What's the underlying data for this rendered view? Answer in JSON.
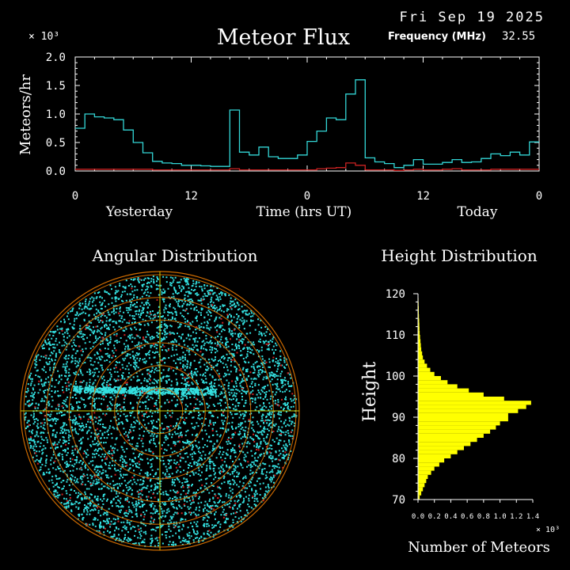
{
  "header": {
    "date": "Fri Sep 19 2025",
    "title": "Meteor Flux",
    "frequency_label": "Frequency (MHz)",
    "frequency_value": "32.55"
  },
  "colors": {
    "background": "#000000",
    "axes": "#ffffff",
    "flux_line": "#33d6d6",
    "flux_red": "#cc2222",
    "scatter_points": "#33e0e0",
    "scatter_red": "#cc2222",
    "rings": "#cc6a00",
    "crosshair": "#c8c800",
    "histogram": "#ffff00"
  },
  "chart_data": [
    {
      "type": "line",
      "title": "Meteor Flux",
      "ylabel": "Meteors/hr",
      "y_multiplier": "× 10³",
      "xlabel": "Time (hrs UT)",
      "day_labels": [
        "Yesterday",
        "Today"
      ],
      "x_tick_labels": [
        "0",
        "12",
        "0",
        "12",
        "0"
      ],
      "y_tick_labels": [
        "0.0",
        "0.5",
        "1.0",
        "1.5",
        "2.0"
      ],
      "x_range": [
        0,
        48
      ],
      "ylim": [
        0,
        2.0
      ],
      "series": [
        {
          "values": [
            0.75,
            1.0,
            0.95,
            0.93,
            0.9,
            0.72,
            0.5,
            0.32,
            0.17,
            0.14,
            0.13,
            0.1,
            0.1,
            0.09,
            0.08,
            0.08,
            1.07,
            0.33,
            0.28,
            0.42,
            0.25,
            0.22,
            0.22,
            0.28,
            0.52,
            0.7,
            0.93,
            0.9,
            1.35,
            1.6,
            0.23,
            0.16,
            0.13,
            0.06,
            0.1,
            0.2,
            0.12,
            0.12,
            0.15,
            0.2,
            0.15,
            0.16,
            0.22,
            0.3,
            0.27,
            0.33,
            0.28,
            0.51
          ]
        },
        {
          "values": [
            0.03,
            0.03,
            0.03,
            0.03,
            0.03,
            0.03,
            0.03,
            0.03,
            0.02,
            0.02,
            0.02,
            0.02,
            0.02,
            0.02,
            0.02,
            0.02,
            0.04,
            0.02,
            0.02,
            0.02,
            0.02,
            0.02,
            0.02,
            0.02,
            0.02,
            0.04,
            0.05,
            0.06,
            0.14,
            0.1,
            0.02,
            0.02,
            0.02,
            0.01,
            0.02,
            0.03,
            0.02,
            0.02,
            0.03,
            0.04,
            0.02,
            0.02,
            0.02,
            0.03,
            0.03,
            0.03,
            0.03,
            0.03
          ]
        }
      ]
    },
    {
      "type": "scatter",
      "title": "Angular Distribution",
      "description": "polar sky plot with concentric rings and crosshair",
      "ring_count": 6
    },
    {
      "type": "bar",
      "orientation": "horizontal",
      "title": "Height Distribution",
      "ylabel": "Height",
      "xlabel": "Number of Meteors",
      "x_multiplier": "× 10³",
      "y_tick_labels": [
        "70",
        "80",
        "90",
        "100",
        "110",
        "120"
      ],
      "x_tick_labels": [
        "0.0",
        "0.2",
        "0.4",
        "0.6",
        "0.8",
        "1.0",
        "1.2",
        "1.4"
      ],
      "ylim": [
        70,
        120
      ],
      "xlim": [
        0,
        1.4
      ],
      "heights": [
        70,
        71,
        72,
        73,
        74,
        75,
        76,
        77,
        78,
        79,
        80,
        81,
        82,
        83,
        84,
        85,
        86,
        87,
        88,
        89,
        90,
        91,
        92,
        93,
        94,
        95,
        96,
        97,
        98,
        99,
        100,
        101,
        102,
        103,
        104,
        105,
        106,
        107,
        108,
        109,
        110,
        111,
        112,
        113,
        114,
        115,
        116,
        117,
        118,
        119
      ],
      "values": [
        0.02,
        0.04,
        0.06,
        0.08,
        0.1,
        0.12,
        0.16,
        0.2,
        0.26,
        0.32,
        0.4,
        0.48,
        0.56,
        0.64,
        0.72,
        0.8,
        0.88,
        0.95,
        1.0,
        1.1,
        1.1,
        1.22,
        1.32,
        1.38,
        1.05,
        0.8,
        0.62,
        0.48,
        0.36,
        0.28,
        0.2,
        0.15,
        0.11,
        0.08,
        0.06,
        0.05,
        0.04,
        0.035,
        0.03,
        0.025,
        0.02,
        0.018,
        0.016,
        0.014,
        0.012,
        0.01,
        0.01,
        0.008,
        0.006,
        0.005
      ]
    }
  ]
}
